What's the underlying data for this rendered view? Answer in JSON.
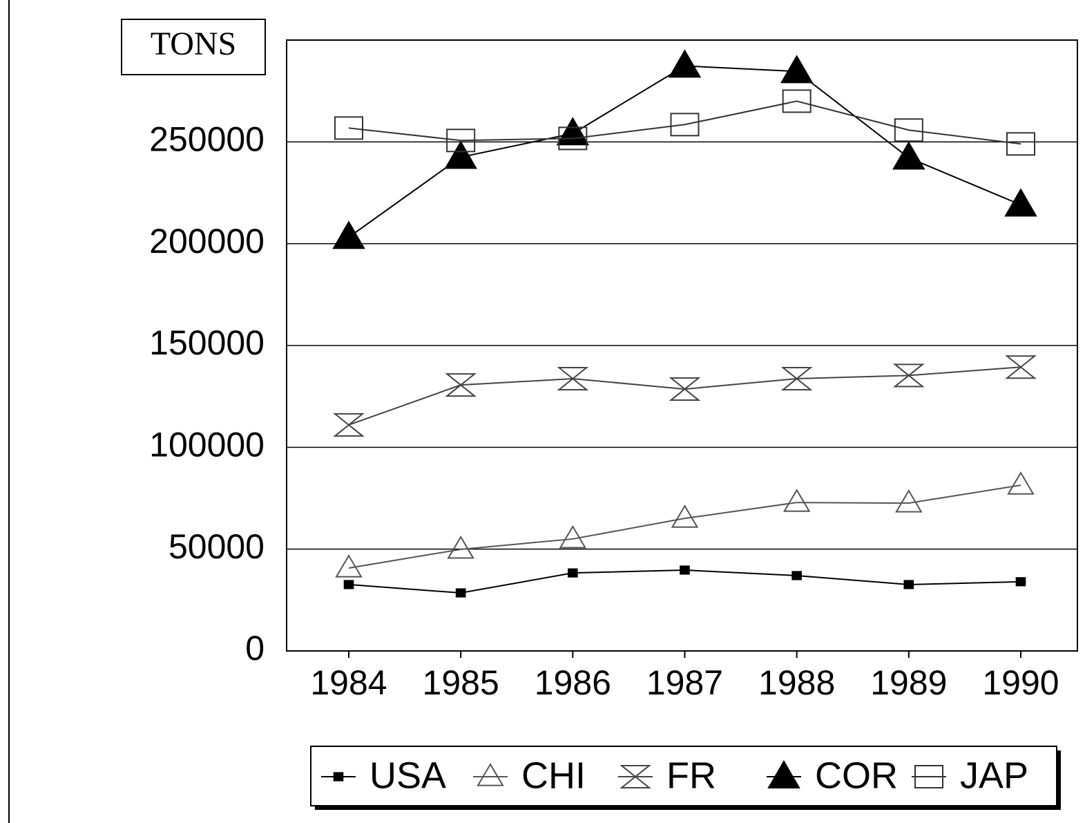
{
  "chart_data": {
    "type": "line",
    "title": "TONS",
    "categories": [
      "1984",
      "1985",
      "1986",
      "1987",
      "1988",
      "1989",
      "1990"
    ],
    "series": [
      {
        "name": "USA",
        "color": "#000000",
        "marker": "filled-square",
        "values": [
          32600,
          28500,
          38300,
          39700,
          37000,
          32600,
          34000
        ]
      },
      {
        "name": "CHI",
        "color": "#555555",
        "marker": "open-triangle",
        "values": [
          40700,
          49900,
          55000,
          65100,
          72900,
          72600,
          81400
        ]
      },
      {
        "name": "FR",
        "color": "#444444",
        "marker": "hourglass",
        "values": [
          111000,
          130600,
          133700,
          128600,
          133700,
          135300,
          139400
        ]
      },
      {
        "name": "COR",
        "color": "#000000",
        "marker": "filled-triangle",
        "values": [
          203200,
          242500,
          254100,
          287300,
          284600,
          242200,
          219100
        ]
      },
      {
        "name": "JAP",
        "color": "#333333",
        "marker": "open-square",
        "values": [
          256800,
          250700,
          251700,
          258500,
          270000,
          255800,
          249000
        ]
      }
    ],
    "ylim": [
      0,
      300000
    ],
    "yticks": [
      0,
      50000,
      100000,
      150000,
      200000,
      250000
    ],
    "grid": true,
    "legend": "bottom"
  }
}
